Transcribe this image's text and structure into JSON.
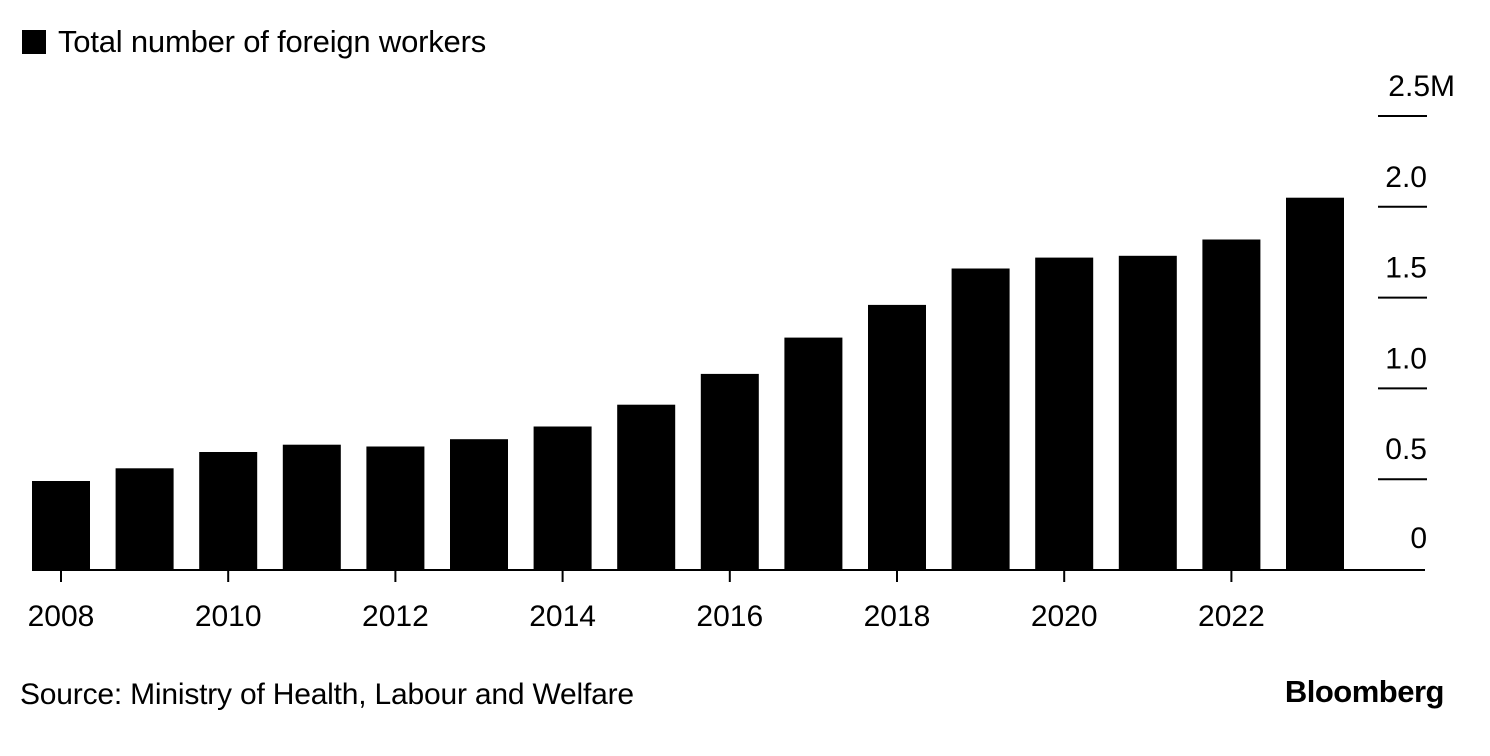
{
  "chart_data": {
    "type": "bar",
    "legend": {
      "label": "Total number of foreign workers",
      "placement": "top-left"
    },
    "categories": [
      "2008",
      "2009",
      "2010",
      "2011",
      "2012",
      "2013",
      "2014",
      "2015",
      "2016",
      "2017",
      "2018",
      "2019",
      "2020",
      "2021",
      "2022",
      "2023"
    ],
    "values": [
      0.49,
      0.56,
      0.65,
      0.69,
      0.68,
      0.72,
      0.79,
      0.91,
      1.08,
      1.28,
      1.46,
      1.66,
      1.72,
      1.73,
      1.82,
      2.05
    ],
    "x_tick_labels": [
      "2008",
      "2010",
      "2012",
      "2014",
      "2016",
      "2018",
      "2020",
      "2022"
    ],
    "y_ticks": [
      0,
      0.5,
      1.0,
      1.5,
      2.0,
      2.5
    ],
    "y_tick_labels": [
      "0",
      "0.5",
      "1.0",
      "1.5",
      "2.0",
      "2.5M"
    ],
    "ylim": [
      0,
      2.5
    ],
    "y_axis_position": "right",
    "bar_color": "#000000",
    "title": "",
    "xlabel": "",
    "ylabel": ""
  },
  "footer": {
    "source": "Source: Ministry of Health, Labour and Welfare",
    "brand": "Bloomberg"
  }
}
